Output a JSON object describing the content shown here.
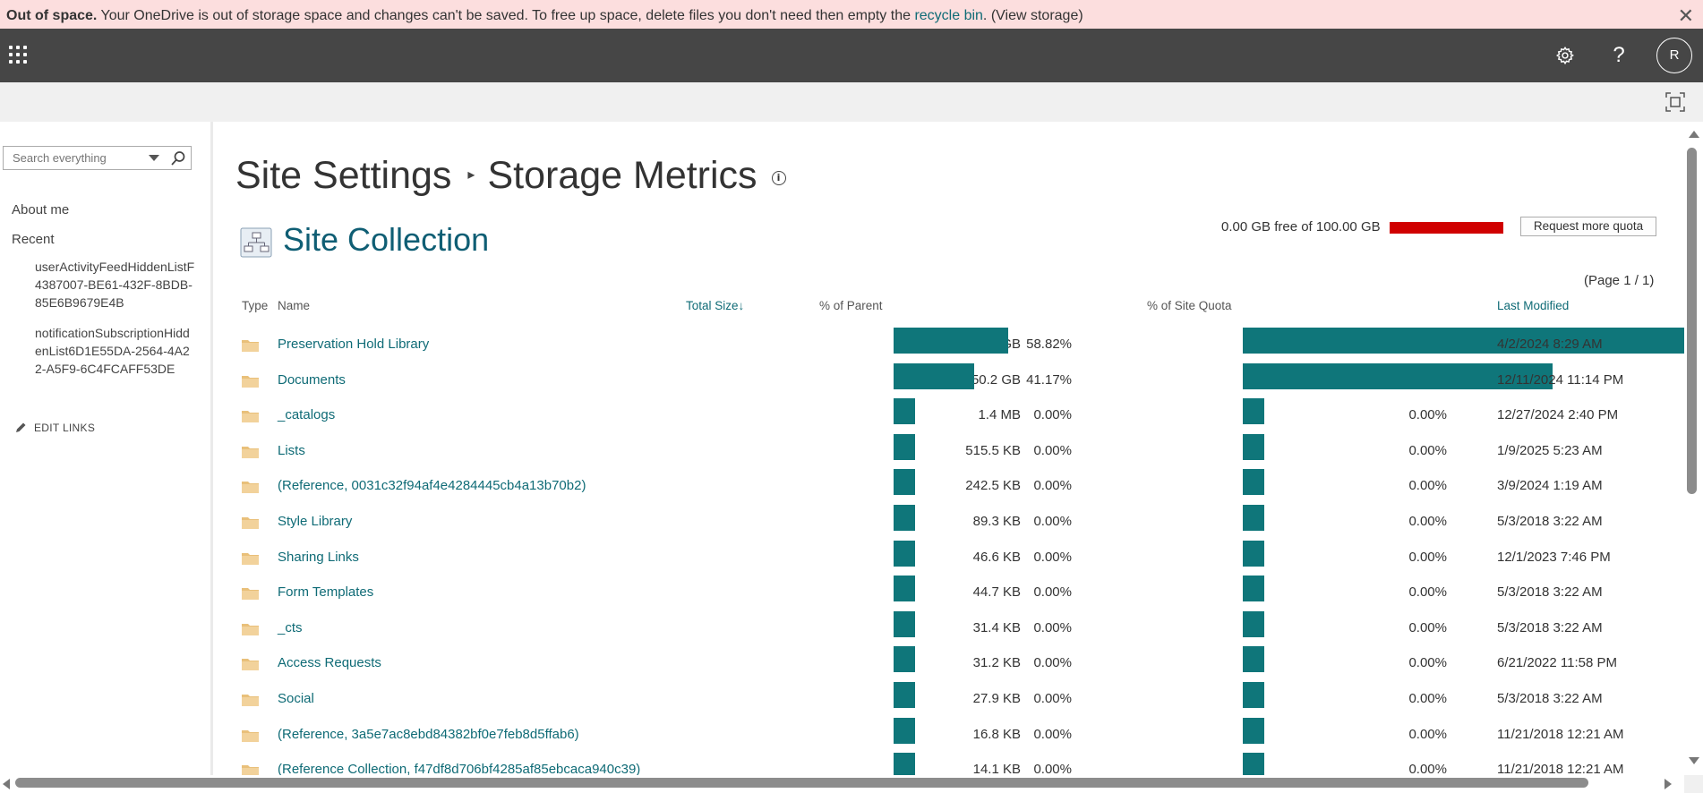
{
  "banner": {
    "bold": "Out of space.",
    "text1": " Your OneDrive is out of storage space and changes can't be saved. To free up space, delete files you don't need then empty the ",
    "link1": "recycle bin",
    "text2": ". ",
    "link2": "(View storage)",
    "close": "✕"
  },
  "suitebar": {
    "settings_icon": "gear-icon",
    "help": "?",
    "avatar": "R"
  },
  "nav": {
    "search_placeholder": "Search everything",
    "about_me": "About me",
    "recent": "Recent",
    "recent_items": [
      "userActivityFeedHiddenListF4387007-BE61-432F-8BDB-85E6B9679E4B",
      "notificationSubscriptionHiddenList6D1E55DA-2564-4A22-A5F9-6C4FCAFF53DE"
    ],
    "edit_links": "EDIT LINKS"
  },
  "page": {
    "crumb_parent": "Site Settings",
    "crumb_sep": "▸",
    "crumb_current": "Storage Metrics",
    "info": "i",
    "section_title": "Site Collection",
    "quota_text": "0.00 GB free of 100.00 GB",
    "quota_used_fraction": 1.0,
    "request_quota": "Request more quota",
    "pager": "(Page 1 / 1)"
  },
  "table": {
    "headers": {
      "type": "Type",
      "name": "Name",
      "total_size": "Total Size↓",
      "pct_parent": "% of Parent",
      "pct_quota": "% of Site Quota",
      "last_modified": "Last Modified"
    },
    "rows": [
      {
        "name": "Preservation Hold Library",
        "size": "214.7 GB",
        "pct_parent": "58.82%",
        "parent_fraction": 0.5882,
        "pct_quota": "214.65%",
        "quota_fraction": 2.1465,
        "modified": "4/2/2024 8:29 AM"
      },
      {
        "name": "Documents",
        "size": "150.2 GB",
        "pct_parent": "41.17%",
        "parent_fraction": 0.4117,
        "pct_quota": "150.25%",
        "quota_fraction": 1.5025,
        "modified": "12/11/2024 11:14 PM"
      },
      {
        "name": "_catalogs",
        "size": "1.4 MB",
        "pct_parent": "0.00%",
        "parent_fraction": 0,
        "pct_quota": "0.00%",
        "quota_fraction": 0,
        "modified": "12/27/2024 2:40 PM"
      },
      {
        "name": "Lists",
        "size": "515.5 KB",
        "pct_parent": "0.00%",
        "parent_fraction": 0,
        "pct_quota": "0.00%",
        "quota_fraction": 0,
        "modified": "1/9/2025 5:23 AM"
      },
      {
        "name": "(Reference, 0031c32f94af4e4284445cb4a13b70b2)",
        "size": "242.5 KB",
        "pct_parent": "0.00%",
        "parent_fraction": 0,
        "pct_quota": "0.00%",
        "quota_fraction": 0,
        "modified": "3/9/2024 1:19 AM"
      },
      {
        "name": "Style Library",
        "size": "89.3 KB",
        "pct_parent": "0.00%",
        "parent_fraction": 0,
        "pct_quota": "0.00%",
        "quota_fraction": 0,
        "modified": "5/3/2018 3:22 AM"
      },
      {
        "name": "Sharing Links",
        "size": "46.6 KB",
        "pct_parent": "0.00%",
        "parent_fraction": 0,
        "pct_quota": "0.00%",
        "quota_fraction": 0,
        "modified": "12/1/2023 7:46 PM"
      },
      {
        "name": "Form Templates",
        "size": "44.7 KB",
        "pct_parent": "0.00%",
        "parent_fraction": 0,
        "pct_quota": "0.00%",
        "quota_fraction": 0,
        "modified": "5/3/2018 3:22 AM"
      },
      {
        "name": "_cts",
        "size": "31.4 KB",
        "pct_parent": "0.00%",
        "parent_fraction": 0,
        "pct_quota": "0.00%",
        "quota_fraction": 0,
        "modified": "5/3/2018 3:22 AM"
      },
      {
        "name": "Access Requests",
        "size": "31.2 KB",
        "pct_parent": "0.00%",
        "parent_fraction": 0,
        "pct_quota": "0.00%",
        "quota_fraction": 0,
        "modified": "6/21/2022 11:58 PM"
      },
      {
        "name": "Social",
        "size": "27.9 KB",
        "pct_parent": "0.00%",
        "parent_fraction": 0,
        "pct_quota": "0.00%",
        "quota_fraction": 0,
        "modified": "5/3/2018 3:22 AM"
      },
      {
        "name": "(Reference, 3a5e7ac8ebd84382bf0e7feb8d5ffab6)",
        "size": "16.8 KB",
        "pct_parent": "0.00%",
        "parent_fraction": 0,
        "pct_quota": "0.00%",
        "quota_fraction": 0,
        "modified": "11/21/2018 12:21 AM"
      },
      {
        "name": "(Reference Collection, f47df8d706bf4285af85ebcaca940c39)",
        "size": "14.1 KB",
        "pct_parent": "0.00%",
        "parent_fraction": 0,
        "pct_quota": "0.00%",
        "quota_fraction": 0,
        "modified": "11/21/2018 12:21 AM"
      }
    ]
  },
  "colors": {
    "accent": "#0f6b76",
    "bar": "#0f767a",
    "quota_bar": "#d00000",
    "banner_bg": "#fcdede",
    "suitebar_bg": "#464646"
  }
}
